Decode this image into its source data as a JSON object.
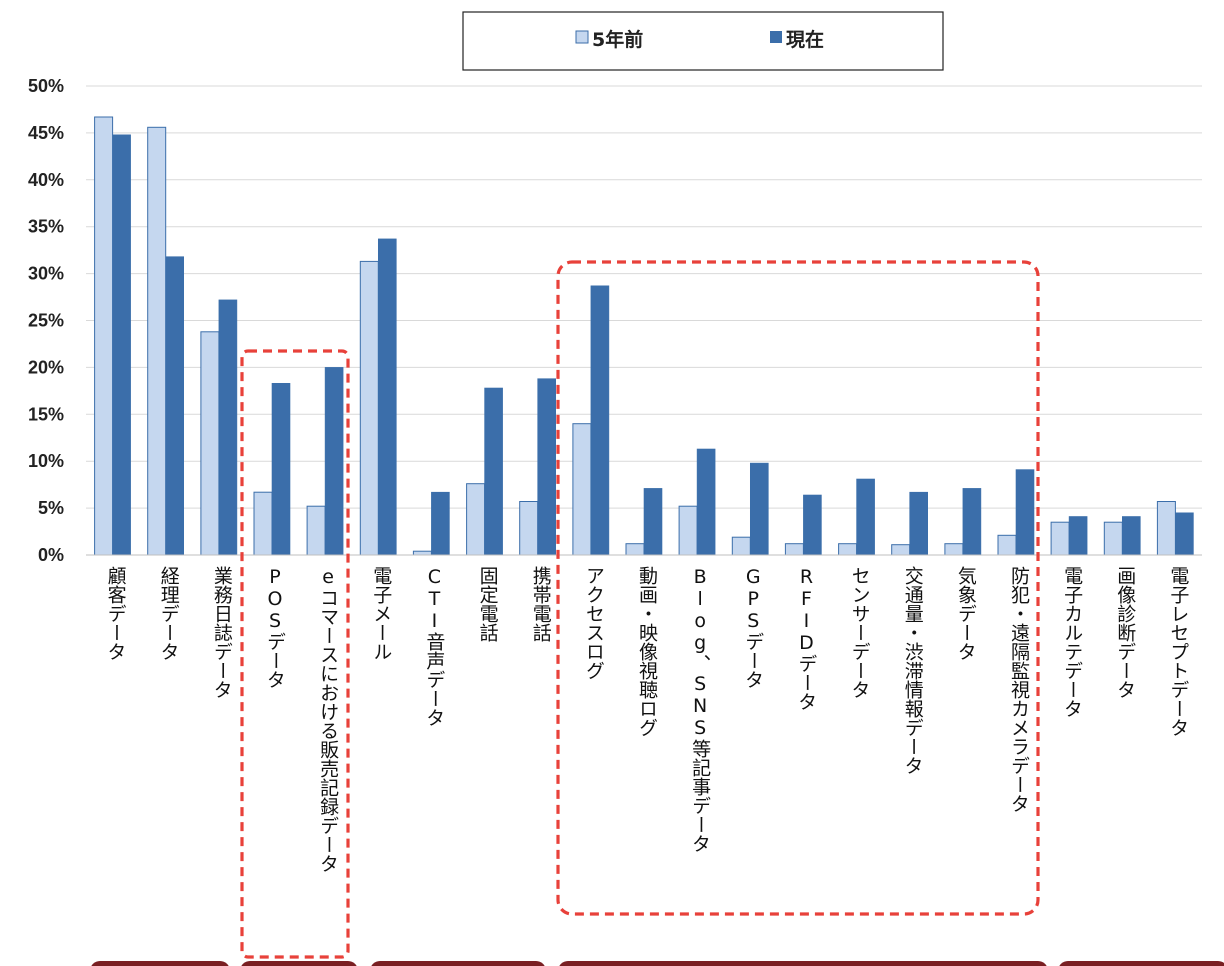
{
  "chart_data": {
    "type": "bar",
    "ylim": [
      0,
      50
    ],
    "yticks": [
      "0%",
      "5%",
      "10%",
      "15%",
      "20%",
      "25%",
      "30%",
      "35%",
      "40%",
      "45%",
      "50%"
    ],
    "legend_position": "top-center",
    "grid": true,
    "categories": [
      "顧客データ",
      "経理データ",
      "業務日誌データ",
      "POSデータ",
      "eコマースにおける販売記録データ",
      "電子メール",
      "CTI音声データ",
      "固定電話",
      "携帯電話",
      "アクセスログ",
      "動画・映像視聴ログ",
      "Blog、SNS等記事データ",
      "GPSデータ",
      "RFIDデータ",
      "センサーデータ",
      "交通量・渋滞情報データ",
      "気象データ",
      "防犯・遠隔監視カメラデータ",
      "電子カルテデータ",
      "画像診断データ",
      "電子レセプトデータ"
    ],
    "series": [
      {
        "name": "5年前",
        "color": "#c5d7ef",
        "values": [
          46.7,
          45.6,
          23.8,
          6.7,
          5.2,
          31.3,
          0.4,
          7.6,
          5.7,
          14.0,
          1.2,
          5.2,
          1.9,
          1.2,
          1.2,
          1.1,
          1.2,
          2.1,
          3.5,
          3.5,
          5.7
        ]
      },
      {
        "name": "現在",
        "color": "#3b6eaa",
        "values": [
          44.8,
          31.8,
          27.2,
          18.3,
          20.0,
          33.7,
          6.7,
          17.8,
          18.8,
          28.7,
          7.1,
          11.3,
          9.8,
          6.4,
          8.1,
          6.7,
          7.1,
          9.1,
          4.1,
          4.1,
          4.5
        ]
      }
    ],
    "highlight_color": "#e8413a",
    "group_tab_color": "#7a1f23"
  }
}
